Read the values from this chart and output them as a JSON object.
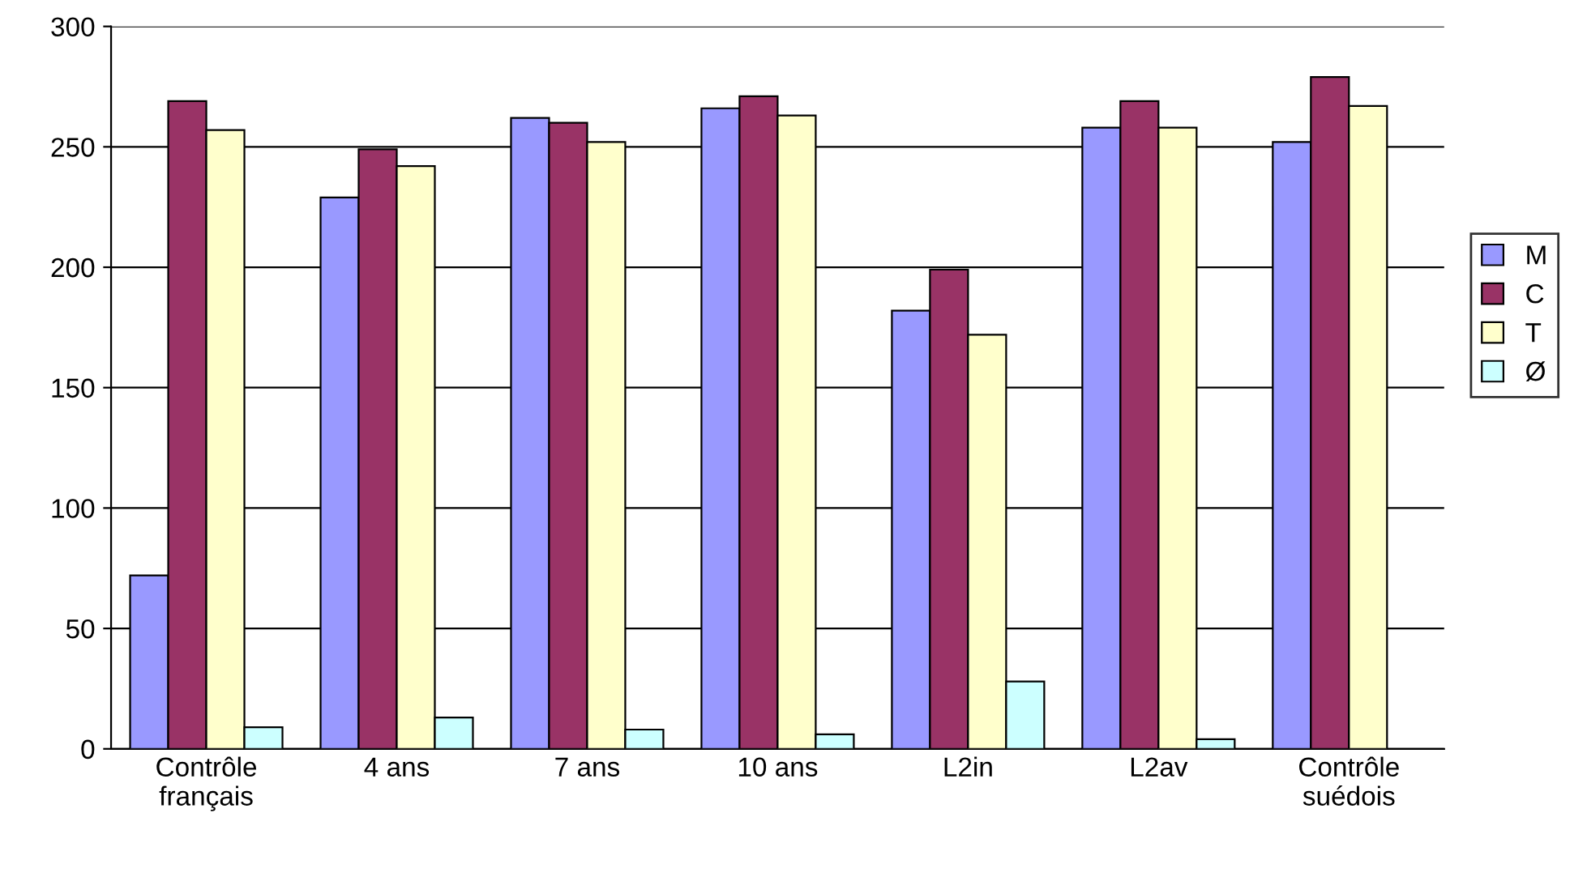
{
  "chart_data": {
    "type": "bar",
    "categories": [
      "Contrôle\nfrançais",
      "4 ans",
      "7 ans",
      "10 ans",
      "L2in",
      "L2av",
      "Contrôle\nsuédois"
    ],
    "series": [
      {
        "name": "M",
        "color": "#9999ff",
        "values": [
          72,
          229,
          262,
          266,
          182,
          258,
          252
        ]
      },
      {
        "name": "C",
        "color": "#993366",
        "values": [
          269,
          249,
          260,
          271,
          199,
          269,
          279
        ]
      },
      {
        "name": "T",
        "color": "#ffffcc",
        "values": [
          257,
          242,
          252,
          263,
          172,
          258,
          267
        ]
      },
      {
        "name": "Ø",
        "color": "#ccffff",
        "values": [
          9,
          13,
          8,
          6,
          28,
          4,
          null
        ]
      }
    ],
    "ylim": [
      0,
      300
    ],
    "yticks": [
      0,
      50,
      100,
      150,
      200,
      250,
      300
    ],
    "grid": "y",
    "legend": "right"
  }
}
